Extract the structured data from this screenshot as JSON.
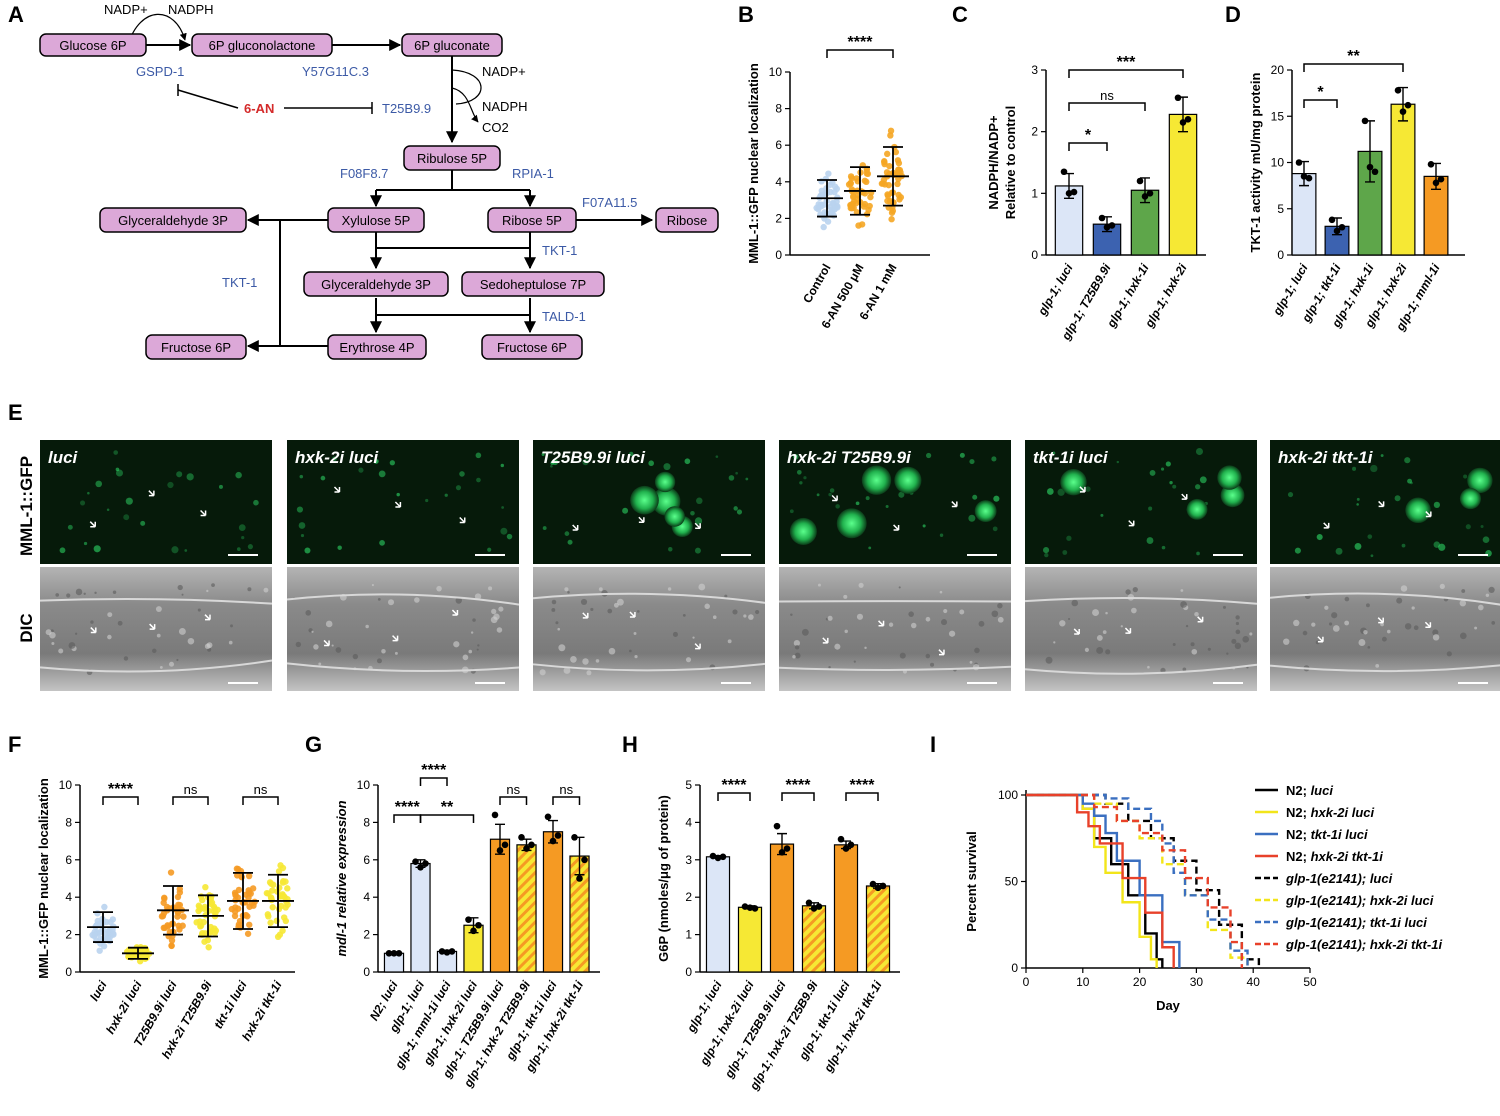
{
  "panel_letters": [
    "A",
    "B",
    "C",
    "D",
    "E",
    "F",
    "G",
    "H",
    "I"
  ],
  "pathway": {
    "nodes": [
      "Glucose 6P",
      "6P gluconolactone",
      "6P gluconate",
      "Ribulose 5P",
      "Xylulose 5P",
      "Ribose 5P",
      "Ribose",
      "Glyceraldehyde 3P",
      "Glyceraldehyde 3P",
      "Sedoheptulose 7P",
      "Fructose 6P",
      "Erythrose 4P",
      "Fructose 6P"
    ],
    "enzymes": [
      "GSPD-1",
      "Y57G11C.3",
      "T25B9.9",
      "F08F8.7",
      "RPIA-1",
      "F07A11.5",
      "TKT-1",
      "TKT-1",
      "TALD-1"
    ],
    "cofactors": [
      "NADP+",
      "NADPH",
      "NADP+",
      "NADPH",
      "CO2"
    ],
    "inhibitor": "6-AN",
    "colors": {
      "node_fill": "#dca8d8",
      "enzyme_text": "#3c5aa6",
      "inhibitor_text": "#d42a2a"
    }
  },
  "panel_e": {
    "row_labels": [
      "MML-1::GFP",
      "DIC"
    ],
    "conditions": [
      "luci",
      "hxk-2i luci",
      "T25B9.9i luci",
      "hxk-2i T25B9.9i",
      "tkt-1i luci",
      "hxk-2i tkt-1i"
    ],
    "colors": {
      "gfp_background": "#061a0a",
      "gfp_spot": "#2fe06a",
      "dic_background": "#8a8a8a"
    }
  },
  "chart_data": [
    {
      "panel": "B",
      "type": "scatter",
      "ylabel": "MML-1::GFP nuclear localization",
      "categories": [
        "Control",
        "6-AN 500 μM",
        "6-AN 1 mM"
      ],
      "means": [
        3.1,
        3.5,
        4.3
      ],
      "sd": [
        1.0,
        1.3,
        1.6
      ],
      "ylim": [
        0,
        10
      ],
      "yticks": [
        0,
        2,
        4,
        6,
        8,
        10
      ],
      "point_colors": [
        "#b9d3ee",
        "#f5a623",
        "#f5a623"
      ],
      "comparisons": [
        {
          "from": 0,
          "to": 2,
          "label": "****"
        }
      ]
    },
    {
      "panel": "C",
      "type": "bar",
      "ylabel": "NADPH/NADP+\nRelative to control",
      "categories": [
        "glp-1; luci",
        "glp-1; T25B9.9i",
        "glp-1; hxk-1i",
        "glp-1; hxk-2i"
      ],
      "values": [
        1.12,
        0.5,
        1.05,
        2.28
      ],
      "errors": [
        0.2,
        0.12,
        0.2,
        0.28
      ],
      "points": [
        [
          1.35,
          1.0,
          1.02
        ],
        [
          0.6,
          0.45,
          0.48
        ],
        [
          1.2,
          0.95,
          1.0
        ],
        [
          2.55,
          2.15,
          2.2
        ]
      ],
      "ylim": [
        0,
        3
      ],
      "yticks": [
        0,
        1,
        2,
        3
      ],
      "colors": [
        "#dce6f7",
        "#3c62b0",
        "#5ea64a",
        "#f6e834"
      ],
      "comparisons": [
        {
          "from": 0,
          "to": 1,
          "label": "*"
        },
        {
          "from": 0,
          "to": 2,
          "label": "ns"
        },
        {
          "from": 0,
          "to": 3,
          "label": "***"
        }
      ]
    },
    {
      "panel": "D",
      "type": "bar",
      "ylabel": "TKT-1 activity mU/mg protein",
      "categories": [
        "glp-1; luci",
        "glp-1; tkt-1i",
        "glp-1; hxk-1i",
        "glp-1; hxk-2i",
        "glp-1; mml-1i"
      ],
      "values": [
        8.8,
        3.1,
        11.2,
        16.3,
        8.5
      ],
      "errors": [
        1.3,
        0.9,
        3.3,
        1.8,
        1.4
      ],
      "points": [
        [
          10.0,
          8.5,
          8.3
        ],
        [
          3.8,
          2.6,
          3.0
        ],
        [
          14.5,
          9.5,
          9.0
        ],
        [
          17.8,
          15.5,
          16.2
        ],
        [
          9.8,
          7.8,
          8.2
        ]
      ],
      "ylim": [
        0,
        20
      ],
      "yticks": [
        0,
        5,
        10,
        15,
        20
      ],
      "colors": [
        "#dce6f7",
        "#3c62b0",
        "#5ea64a",
        "#f6e834",
        "#f59a23"
      ],
      "comparisons": [
        {
          "from": 0,
          "to": 1,
          "label": "*"
        },
        {
          "from": 0,
          "to": 3,
          "label": "**"
        }
      ]
    },
    {
      "panel": "F",
      "type": "scatter",
      "ylabel": "MML-1::GFP nuclear localization",
      "categories": [
        "luci",
        "hxk-2i luci",
        "T25B9.9i luci",
        "hxk-2i T25B9.9i",
        "tkt-1i luci",
        "hxk-2i tkt-1i"
      ],
      "means": [
        2.4,
        1.0,
        3.3,
        3.0,
        3.8,
        3.8
      ],
      "sd": [
        0.8,
        0.3,
        1.3,
        1.1,
        1.5,
        1.4
      ],
      "ylim": [
        0,
        10
      ],
      "yticks": [
        0,
        2,
        4,
        6,
        8,
        10
      ],
      "point_colors": [
        "#b9d3ee",
        "#f6e834",
        "#f59a23",
        "#f6e834",
        "#f59a23",
        "#f6e834"
      ],
      "comparisons": [
        {
          "from": 0,
          "to": 1,
          "label": "****"
        },
        {
          "from": 2,
          "to": 3,
          "label": "ns"
        },
        {
          "from": 4,
          "to": 5,
          "label": "ns"
        }
      ]
    },
    {
      "panel": "G",
      "type": "bar",
      "ylabel": "mdl-1 relative expression",
      "categories": [
        "N2; luci",
        "glp-1; luci",
        "glp-1; mml-1i luci",
        "glp-1; hxk-2i luci",
        "glp-1; T25B9.9i luci",
        "glp-1; hxk-2 T25B9.9i",
        "glp-1; tkt-1i luci",
        "glp-1; hxk-2i tkt-1i"
      ],
      "values": [
        1.0,
        5.8,
        1.1,
        2.5,
        7.1,
        6.8,
        7.5,
        6.2
      ],
      "errors": [
        0.05,
        0.2,
        0.05,
        0.4,
        0.8,
        0.3,
        0.6,
        1.0
      ],
      "points": [
        [
          1.0,
          1.0,
          1.0
        ],
        [
          5.9,
          5.6,
          5.8
        ],
        [
          1.1,
          1.05,
          1.1
        ],
        [
          2.8,
          2.2,
          2.5
        ],
        [
          8.4,
          6.5,
          6.8
        ],
        [
          7.2,
          6.6,
          6.8
        ],
        [
          8.3,
          7.0,
          7.3
        ],
        [
          7.2,
          5.0,
          6.0
        ]
      ],
      "ylim": [
        0,
        10
      ],
      "yticks": [
        0,
        2,
        4,
        6,
        8,
        10
      ],
      "colors": [
        "#dce6f7",
        "#dce6f7",
        "#dce6f7",
        "#f6e834",
        "#f59a23",
        "hatched",
        "#f59a23",
        "hatched"
      ],
      "comparisons": [
        {
          "from": 0,
          "to": 1,
          "label": "****"
        },
        {
          "from": 1,
          "to": 2,
          "label": "****"
        },
        {
          "from": 1,
          "to": 3,
          "label": "**"
        },
        {
          "from": 4,
          "to": 5,
          "label": "ns"
        },
        {
          "from": 6,
          "to": 7,
          "label": "ns"
        }
      ]
    },
    {
      "panel": "H",
      "type": "bar",
      "ylabel": "G6P (nmoles/μg of protein)",
      "categories": [
        "glp-1; luci",
        "glp-1; hxk-2i luci",
        "glp-1; T25B9.9i luci",
        "glp-1; hxk-2i T25B9.9i",
        "glp-1; tkt-1i luci",
        "glp-1; hxk-2i tkt-1i"
      ],
      "values": [
        3.08,
        1.73,
        3.42,
        1.77,
        3.4,
        2.3
      ],
      "errors": [
        0.03,
        0.04,
        0.28,
        0.08,
        0.1,
        0.06
      ],
      "points": [
        [
          3.1,
          3.05,
          3.08
        ],
        [
          1.75,
          1.72,
          1.7
        ],
        [
          3.9,
          3.2,
          3.3
        ],
        [
          1.85,
          1.7,
          1.75
        ],
        [
          3.55,
          3.3,
          3.4
        ],
        [
          2.35,
          2.25,
          2.3
        ]
      ],
      "ylim": [
        0,
        5
      ],
      "yticks": [
        0,
        1,
        2,
        3,
        4,
        5
      ],
      "colors": [
        "#dce6f7",
        "#f6e834",
        "#f59a23",
        "hatched",
        "#f59a23",
        "hatched"
      ],
      "comparisons": [
        {
          "from": 0,
          "to": 1,
          "label": "****"
        },
        {
          "from": 2,
          "to": 3,
          "label": "****"
        },
        {
          "from": 4,
          "to": 5,
          "label": "****"
        }
      ]
    },
    {
      "panel": "I",
      "type": "line",
      "xlabel": "Day",
      "ylabel": "Percent survival",
      "xlim": [
        0,
        50
      ],
      "xticks": [
        0,
        10,
        20,
        30,
        40,
        50
      ],
      "ylim": [
        0,
        100
      ],
      "yticks": [
        0,
        50,
        100
      ],
      "series": [
        {
          "name": "N2; luci",
          "color": "#000000",
          "dash": false,
          "x": [
            0,
            8,
            10,
            12,
            15,
            18,
            21,
            23,
            24
          ],
          "y": [
            100,
            100,
            92,
            75,
            60,
            42,
            20,
            5,
            0
          ]
        },
        {
          "name": "N2; hxk-2i luci",
          "color": "#f2e51a",
          "dash": false,
          "x": [
            0,
            8,
            10,
            12,
            14,
            17,
            20,
            22,
            23
          ],
          "y": [
            100,
            100,
            92,
            70,
            55,
            38,
            18,
            5,
            0
          ]
        },
        {
          "name": "N2; tkt-1i luci",
          "color": "#3a6fc0",
          "dash": false,
          "x": [
            0,
            8,
            10,
            12,
            14,
            16,
            20,
            24,
            27
          ],
          "y": [
            100,
            100,
            95,
            88,
            78,
            62,
            42,
            15,
            0
          ]
        },
        {
          "name": "N2; hxk-2i tkt-1i",
          "color": "#e8412a",
          "dash": false,
          "x": [
            0,
            7,
            9,
            11,
            13,
            17,
            21,
            24,
            26
          ],
          "y": [
            100,
            100,
            90,
            82,
            72,
            52,
            32,
            12,
            0
          ]
        },
        {
          "name": "glp-1(e2141); luci",
          "color": "#000000",
          "dash": true,
          "x": [
            0,
            10,
            14,
            18,
            22,
            26,
            30,
            34,
            38,
            41
          ],
          "y": [
            100,
            100,
            95,
            85,
            75,
            62,
            45,
            25,
            5,
            0
          ]
        },
        {
          "name": "glp-1(e2141); hxk-2i luci",
          "color": "#f2e51a",
          "dash": true,
          "x": [
            0,
            9,
            12,
            16,
            20,
            24,
            28,
            32,
            36,
            39
          ],
          "y": [
            100,
            100,
            95,
            85,
            75,
            60,
            42,
            22,
            6,
            0
          ]
        },
        {
          "name": "glp-1(e2141); tkt-1i luci",
          "color": "#3a6fc0",
          "dash": true,
          "x": [
            0,
            10,
            14,
            18,
            22,
            24,
            26,
            28,
            32,
            36,
            39
          ],
          "y": [
            100,
            100,
            98,
            92,
            85,
            72,
            55,
            42,
            28,
            10,
            0
          ]
        },
        {
          "name": "glp-1(e2141); hxk-2i tkt-1i",
          "color": "#e8412a",
          "dash": true,
          "x": [
            0,
            9,
            12,
            16,
            20,
            24,
            28,
            32,
            36,
            38
          ],
          "y": [
            100,
            100,
            93,
            85,
            78,
            68,
            52,
            35,
            15,
            0
          ]
        }
      ]
    }
  ]
}
